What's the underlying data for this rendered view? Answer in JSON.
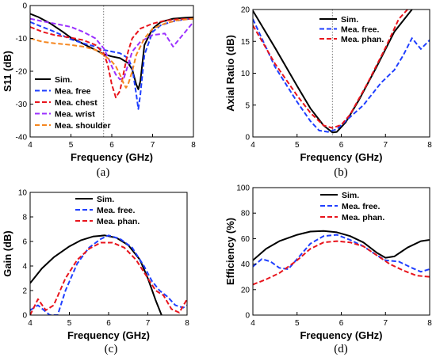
{
  "colors": {
    "black": "#000000",
    "blue": "#1f3fff",
    "red": "#e8141c",
    "purple": "#9b30ff",
    "orange": "#f5861f"
  },
  "chart_data": [
    {
      "caption": "(a)",
      "type": "line",
      "xlabel": "Frequency (GHz)",
      "ylabel": "S11 (dB)",
      "xlim": [
        4,
        8
      ],
      "ylim": [
        -40,
        0
      ],
      "xticks": [
        4,
        5,
        6,
        7,
        8
      ],
      "yticks": [
        -40,
        -30,
        -20,
        -10,
        0
      ],
      "marker_x": 5.8,
      "legend_position": "bottom-left",
      "series": [
        {
          "name": "Sim.",
          "color": "black",
          "dash": "solid",
          "x": [
            4,
            4.2,
            4.5,
            4.8,
            5.0,
            5.2,
            5.4,
            5.6,
            5.8,
            6.0,
            6.2,
            6.4,
            6.5,
            6.6,
            6.65,
            6.7,
            6.8,
            7.0,
            7.2,
            7.5,
            7.8,
            8.0
          ],
          "y": [
            -2.5,
            -3.5,
            -5.5,
            -8,
            -9.8,
            -11,
            -12.3,
            -13.5,
            -14.8,
            -15.5,
            -16,
            -17.5,
            -19.5,
            -24,
            -25.5,
            -23,
            -12,
            -7,
            -5,
            -4,
            -3.7,
            -3.6
          ]
        },
        {
          "name": "Mea. free",
          "color": "blue",
          "dash": "dashed",
          "x": [
            4,
            4.3,
            4.6,
            5.0,
            5.3,
            5.6,
            5.8,
            6.0,
            6.2,
            6.4,
            6.5,
            6.6,
            6.65,
            6.7,
            6.8,
            7.0,
            7.2,
            7.5,
            7.8,
            8.0
          ],
          "y": [
            -5,
            -6.5,
            -8,
            -10.3,
            -11.5,
            -12.5,
            -13.5,
            -14,
            -14.5,
            -16,
            -19,
            -27,
            -31.5,
            -27,
            -15,
            -8,
            -6,
            -4.8,
            -4.2,
            -4
          ]
        },
        {
          "name": "Mea. chest",
          "color": "red",
          "dash": "dashed",
          "x": [
            4,
            4.3,
            4.6,
            5.0,
            5.3,
            5.6,
            5.8,
            5.9,
            6.0,
            6.1,
            6.2,
            6.3,
            6.4,
            6.5,
            6.7,
            7.0,
            7.3,
            7.6,
            8.0
          ],
          "y": [
            -6.5,
            -8,
            -9,
            -9.8,
            -10.5,
            -12,
            -14.5,
            -18,
            -24,
            -28,
            -26,
            -20,
            -14,
            -10,
            -7,
            -5.5,
            -4.6,
            -4.2,
            -4
          ]
        },
        {
          "name": "Mea. wrist",
          "color": "purple",
          "dash": "dashed",
          "x": [
            4,
            4.3,
            4.6,
            5.0,
            5.3,
            5.6,
            5.8,
            5.9,
            6.0,
            6.1,
            6.2,
            6.3,
            6.4,
            6.5,
            6.7,
            7.0,
            7.3,
            7.5,
            7.7,
            8.0
          ],
          "y": [
            -4,
            -4.8,
            -5.5,
            -6.5,
            -8,
            -10,
            -13,
            -15.5,
            -18.5,
            -21,
            -22.5,
            -22,
            -18,
            -14,
            -11,
            -9,
            -8.5,
            -12.5,
            -9.5,
            -5
          ]
        },
        {
          "name": "Mea. shoulder",
          "color": "orange",
          "dash": "dashed",
          "x": [
            4,
            4.3,
            4.6,
            5.0,
            5.3,
            5.6,
            5.8,
            6.0,
            6.1,
            6.2,
            6.3,
            6.35,
            6.4,
            6.5,
            6.6,
            6.8,
            7.0,
            7.3,
            7.6,
            8.0
          ],
          "y": [
            -10,
            -11,
            -11.5,
            -12,
            -12.5,
            -13.5,
            -15,
            -17,
            -18.5,
            -21,
            -24,
            -25,
            -24,
            -20,
            -15,
            -10,
            -7,
            -5.5,
            -4.5,
            -4
          ]
        }
      ]
    },
    {
      "caption": "(b)",
      "type": "line",
      "xlabel": "Frequency (GHz)",
      "ylabel": "Axial Ratio (dB)",
      "xlim": [
        4,
        8
      ],
      "ylim": [
        0,
        20
      ],
      "xticks": [
        4,
        5,
        6,
        7,
        8
      ],
      "yticks": [
        0,
        5,
        10,
        15,
        20
      ],
      "marker_x": 5.8,
      "legend_position": "top-right",
      "series": [
        {
          "name": "Sim.",
          "color": "black",
          "dash": "solid",
          "x": [
            4,
            4.5,
            5.0,
            5.3,
            5.6,
            5.8,
            5.9,
            6.1,
            6.4,
            6.8,
            7.2,
            7.6
          ],
          "y": [
            19.8,
            14,
            8,
            4.5,
            1.8,
            0.7,
            0.8,
            2.3,
            5.8,
            11,
            16.5,
            20
          ]
        },
        {
          "name": "Mea. free.",
          "color": "blue",
          "dash": "dashed",
          "x": [
            4,
            4.5,
            5.0,
            5.3,
            5.5,
            5.7,
            5.9,
            6.1,
            6.5,
            6.9,
            7.2,
            7.4,
            7.6,
            7.8,
            8.0
          ],
          "y": [
            18.5,
            11,
            5.5,
            2.5,
            1,
            0.8,
            1.2,
            2.5,
            5,
            8.5,
            10.5,
            12.8,
            15.5,
            13.8,
            15.2
          ]
        },
        {
          "name": "Mea. phan.",
          "color": "red",
          "dash": "dashed",
          "x": [
            4,
            4.5,
            5.0,
            5.3,
            5.6,
            5.8,
            6.0,
            6.2,
            6.6,
            7.0,
            7.3,
            7.5
          ],
          "y": [
            17.5,
            11.5,
            6.5,
            3.8,
            1.8,
            1.4,
            1.9,
            3.5,
            8.5,
            14,
            18.5,
            20
          ]
        }
      ]
    },
    {
      "caption": "(c)",
      "type": "line",
      "xlabel": "Frequency (GHz)",
      "ylabel": "Gain (dB)",
      "xlim": [
        4,
        8
      ],
      "ylim": [
        0,
        10
      ],
      "xticks": [
        4,
        5,
        6,
        7,
        8
      ],
      "yticks": [
        0,
        2,
        4,
        6,
        8,
        10
      ],
      "legend_position": "top-right",
      "series": [
        {
          "name": "Sim.",
          "color": "black",
          "dash": "solid",
          "x": [
            4,
            4.3,
            4.6,
            5.0,
            5.3,
            5.6,
            5.9,
            6.2,
            6.5,
            6.8,
            7.0,
            7.2,
            7.35
          ],
          "y": [
            2.6,
            3.8,
            4.7,
            5.6,
            6.1,
            6.4,
            6.5,
            6.3,
            5.7,
            4.5,
            3.0,
            1.2,
            0
          ]
        },
        {
          "name": "Mea. free.",
          "color": "blue",
          "dash": "dashed",
          "x": [
            4,
            4.2,
            4.5,
            4.7,
            4.9,
            5.2,
            5.5,
            5.8,
            6.0,
            6.3,
            6.6,
            6.9,
            7.1,
            7.3,
            7.5,
            7.7,
            7.9,
            8.0
          ],
          "y": [
            0.4,
            0.8,
            0,
            0,
            2,
            4.2,
            5.5,
            6.2,
            6.5,
            6.2,
            5.5,
            4.0,
            2.8,
            2.0,
            1.5,
            0.8,
            0.6,
            0.8
          ]
        },
        {
          "name": "Mea. phan.",
          "color": "red",
          "dash": "dashed",
          "x": [
            4,
            4.2,
            4.4,
            4.6,
            4.9,
            5.2,
            5.5,
            5.8,
            6.1,
            6.4,
            6.7,
            7.0,
            7.2,
            7.4,
            7.6,
            7.8,
            8.0
          ],
          "y": [
            0,
            1.3,
            0.4,
            0.8,
            3.0,
            4.5,
            5.4,
            5.9,
            5.9,
            5.5,
            4.5,
            3.0,
            2.0,
            1.6,
            0.5,
            0.2,
            1.3
          ]
        }
      ]
    },
    {
      "caption": "(d)",
      "type": "line",
      "xlabel": "Frequency (GHz)",
      "ylabel": "Efficiency (%)",
      "xlim": [
        4,
        8
      ],
      "ylim": [
        0,
        100
      ],
      "xticks": [
        4,
        5,
        6,
        7,
        8
      ],
      "yticks": [
        0,
        20,
        40,
        60,
        80,
        100
      ],
      "legend_position": "top-right",
      "series": [
        {
          "name": "Sim.",
          "color": "black",
          "dash": "solid",
          "x": [
            4,
            4.3,
            4.6,
            5.0,
            5.3,
            5.6,
            5.9,
            6.2,
            6.5,
            6.8,
            7.0,
            7.2,
            7.5,
            7.8,
            8.0
          ],
          "y": [
            43,
            52,
            58,
            63,
            65.5,
            66,
            65,
            62,
            57,
            49,
            45,
            46,
            53,
            58,
            59
          ]
        },
        {
          "name": "Mea. free.",
          "color": "blue",
          "dash": "dashed",
          "x": [
            4,
            4.2,
            4.4,
            4.6,
            4.8,
            5.0,
            5.3,
            5.6,
            5.9,
            6.2,
            6.5,
            6.8,
            7.0,
            7.3,
            7.6,
            7.8,
            8.0
          ],
          "y": [
            38,
            44,
            42,
            37,
            36,
            44,
            56,
            62,
            63,
            59,
            54,
            47,
            43,
            42,
            37,
            34,
            36
          ]
        },
        {
          "name": "Mea. phan.",
          "color": "red",
          "dash": "dashed",
          "x": [
            4,
            4.3,
            4.6,
            5.0,
            5.3,
            5.6,
            5.9,
            6.2,
            6.5,
            6.8,
            7.1,
            7.4,
            7.7,
            8.0
          ],
          "y": [
            24,
            28,
            33,
            43,
            52,
            57,
            58,
            57,
            54,
            47,
            40,
            35,
            31,
            30
          ]
        }
      ]
    }
  ]
}
